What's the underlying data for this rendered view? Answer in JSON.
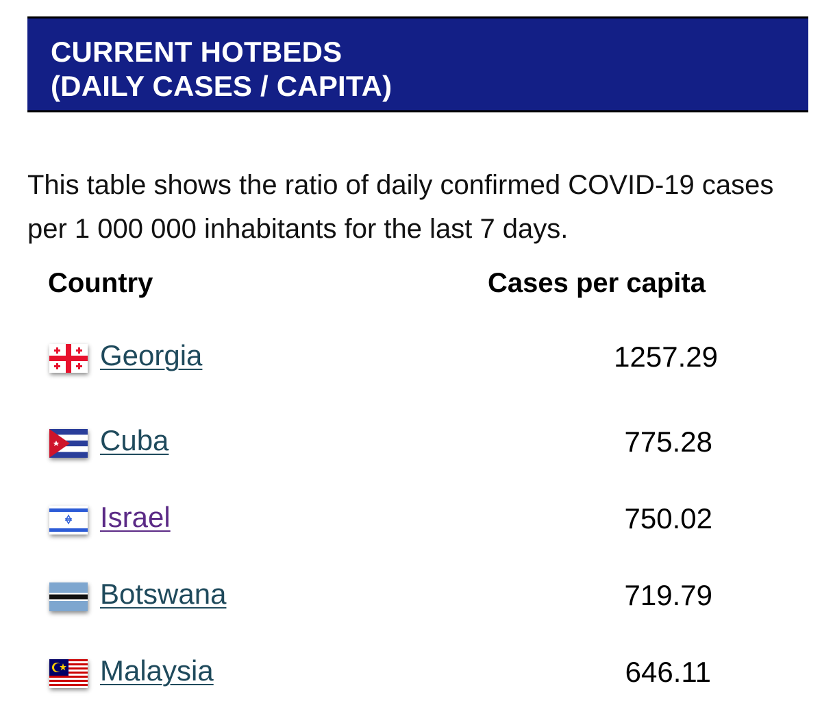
{
  "header": {
    "line1": "CURRENT HOTBEDS",
    "line2": "(DAILY CASES / CAPITA)"
  },
  "description": "This table shows the ratio of daily confirmed COVID-19 cases per 1 000 000 inhabitants for the last 7 days.",
  "table": {
    "columns": [
      "Country",
      "Cases per capita"
    ],
    "rows": [
      {
        "country": "Georgia",
        "value": "1257.29",
        "flag": "georgia-flag-icon"
      },
      {
        "country": "Cuba",
        "value": "775.28",
        "flag": "cuba-flag-icon"
      },
      {
        "country": "Israel",
        "value": "750.02",
        "flag": "israel-flag-icon",
        "visited": true
      },
      {
        "country": "Botswana",
        "value": "719.79",
        "flag": "botswana-flag-icon"
      },
      {
        "country": "Malaysia",
        "value": "646.11",
        "flag": "malaysia-flag-icon"
      }
    ]
  },
  "colors": {
    "header_bg": "#131f86",
    "link": "#1f4a5c",
    "link_visited": "#5b2a86"
  }
}
